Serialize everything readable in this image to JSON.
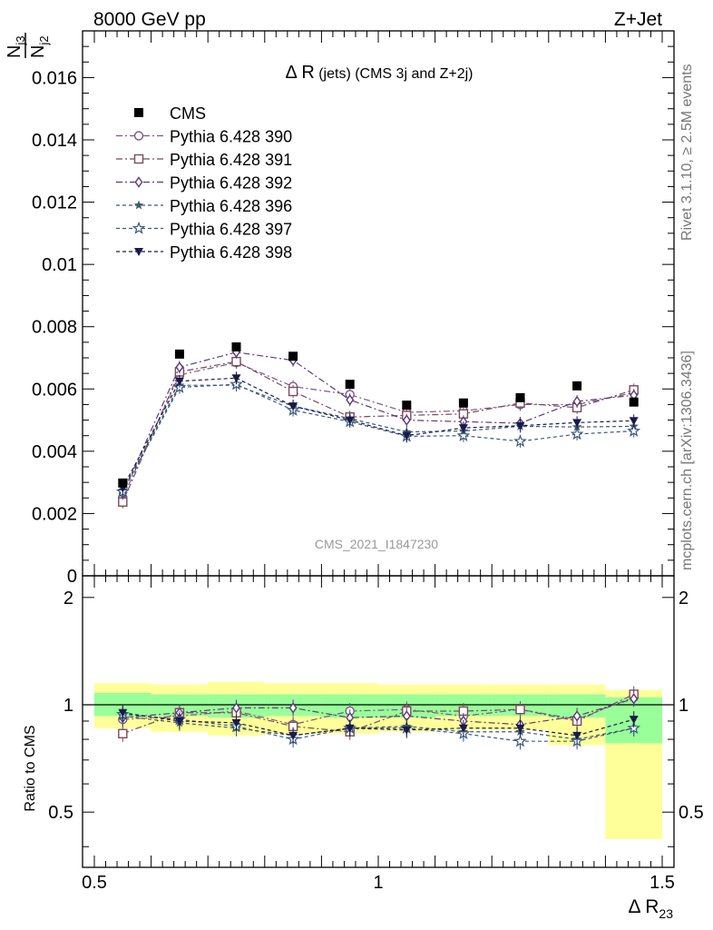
{
  "header": {
    "left": "8000 GeV pp",
    "right": "Z+Jet"
  },
  "side_labels": {
    "rivet": "Rivet 3.1.10, ≥ 2.5M events",
    "mcplots": "mcplots.cern.ch [arXiv:1306.3436]"
  },
  "watermark": "CMS_2021_I1847230",
  "plot_title_main": "Δ R",
  "plot_title_rest": "(jets) (CMS 3j and Z+2j)",
  "ylabel_num": "N",
  "ylabel_num_sub": "j3",
  "ylabel_den": "N",
  "ylabel_den_sub": "j2",
  "xlabel_main": "Δ R",
  "xlabel_sub": "23",
  "ratio_ylabel": "Ratio to CMS",
  "chart_data": {
    "type": "scatter",
    "x_bin_centers": [
      0.55,
      0.65,
      0.75,
      0.85,
      0.95,
      1.05,
      1.15,
      1.25,
      1.35,
      1.45
    ],
    "x_bin_edges": [
      0.5,
      0.6,
      0.7,
      0.8,
      0.9,
      1.0,
      1.1,
      1.2,
      1.3,
      1.4,
      1.5
    ],
    "xlim": [
      0.5,
      1.5
    ],
    "xticks": [
      "0.5",
      "1",
      "1.5"
    ],
    "main": {
      "ylim": [
        0,
        0.0175
      ],
      "yticks": [
        "0",
        "0.002",
        "0.004",
        "0.006",
        "0.008",
        "0.01",
        "0.012",
        "0.014",
        "0.016"
      ],
      "ytick_values": [
        0,
        0.002,
        0.004,
        0.006,
        0.008,
        0.01,
        0.012,
        0.014,
        0.016
      ],
      "data": {
        "name": "CMS",
        "values": [
          0.00298,
          0.00712,
          0.00735,
          0.00705,
          0.00615,
          0.00548,
          0.00555,
          0.00572,
          0.0061,
          0.00558
        ]
      },
      "series": [
        {
          "name": "Pythia 6.428 390",
          "color": "#7a5a8c",
          "marker": "circle-open",
          "dash": "7,3,2,3",
          "values": [
            0.00252,
            0.00645,
            0.00685,
            0.00608,
            0.00582,
            0.00525,
            0.0053,
            0.0055,
            0.0055,
            0.00588
          ]
        },
        {
          "name": "Pythia 6.428 391",
          "color": "#7a4a5a",
          "marker": "square-open",
          "dash": "7,3,2,3",
          "values": [
            0.00237,
            0.00655,
            0.00688,
            0.00592,
            0.0051,
            0.00515,
            0.0052,
            0.00555,
            0.0054,
            0.00597
          ]
        },
        {
          "name": "Pythia 6.428 392",
          "color": "#5a3a7a",
          "marker": "diamond-open",
          "dash": "7,3,2,3",
          "values": [
            0.00265,
            0.0067,
            0.00718,
            0.00692,
            0.00565,
            0.005,
            0.00495,
            0.0049,
            0.0056,
            0.0058
          ]
        },
        {
          "name": "Pythia 6.428 396",
          "color": "#3a5a6a",
          "marker": "star-filled",
          "dash": "4,3",
          "values": [
            0.00275,
            0.00612,
            0.00612,
            0.00545,
            0.00505,
            0.00462,
            0.00465,
            0.0048,
            0.00478,
            0.0048
          ]
        },
        {
          "name": "Pythia 6.428 397",
          "color": "#3a5a7a",
          "marker": "star-open",
          "dash": "4,3",
          "values": [
            0.0027,
            0.00605,
            0.00615,
            0.00532,
            0.00495,
            0.00448,
            0.0045,
            0.00432,
            0.00455,
            0.00465
          ]
        },
        {
          "name": "Pythia 6.428 398",
          "color": "#1a1a4a",
          "marker": "triangle-down-filled",
          "dash": "4,3",
          "values": [
            0.00282,
            0.00625,
            0.00635,
            0.00545,
            0.005,
            0.0045,
            0.00475,
            0.00482,
            0.00492,
            0.00498
          ]
        }
      ]
    },
    "ratio": {
      "ylim": [
        0.35,
        2.3
      ],
      "yticks": [
        "0.5",
        "1",
        "2"
      ],
      "ytick_values": [
        0.5,
        1,
        2
      ],
      "band_inner": {
        "color": "#99ff99",
        "lo": [
          0.93,
          0.93,
          0.92,
          0.93,
          0.92,
          0.92,
          0.93,
          0.93,
          0.92,
          0.78
        ],
        "hi": [
          1.08,
          1.07,
          1.07,
          1.07,
          1.07,
          1.07,
          1.07,
          1.07,
          1.07,
          1.05
        ]
      },
      "band_outer": {
        "color": "#ffff99",
        "lo": [
          0.86,
          0.84,
          0.82,
          0.83,
          0.83,
          0.84,
          0.85,
          0.85,
          0.77,
          0.42
        ],
        "hi": [
          1.15,
          1.14,
          1.16,
          1.15,
          1.15,
          1.14,
          1.14,
          1.14,
          1.14,
          1.1
        ]
      },
      "series": [
        {
          "name": "Pythia 6.428 390",
          "values": [
            0.91,
            0.93,
            0.96,
            0.88,
            0.96,
            0.97,
            0.93,
            0.97,
            0.91,
            1.05
          ]
        },
        {
          "name": "Pythia 6.428 391",
          "values": [
            0.83,
            0.95,
            0.95,
            0.87,
            0.84,
            0.96,
            0.96,
            0.97,
            0.9,
            1.07
          ]
        },
        {
          "name": "Pythia 6.428 392",
          "values": [
            0.92,
            0.95,
            0.98,
            0.98,
            0.92,
            0.93,
            0.9,
            0.88,
            0.93,
            1.04
          ]
        },
        {
          "name": "Pythia 6.428 396",
          "values": [
            0.93,
            0.89,
            0.86,
            0.82,
            0.86,
            0.87,
            0.84,
            0.84,
            0.8,
            0.86
          ]
        },
        {
          "name": "Pythia 6.428 397",
          "values": [
            0.94,
            0.91,
            0.87,
            0.8,
            0.86,
            0.86,
            0.83,
            0.79,
            0.79,
            0.86
          ]
        },
        {
          "name": "Pythia 6.428 398",
          "values": [
            0.95,
            0.9,
            0.89,
            0.82,
            0.86,
            0.85,
            0.86,
            0.86,
            0.82,
            0.91
          ]
        }
      ]
    }
  }
}
